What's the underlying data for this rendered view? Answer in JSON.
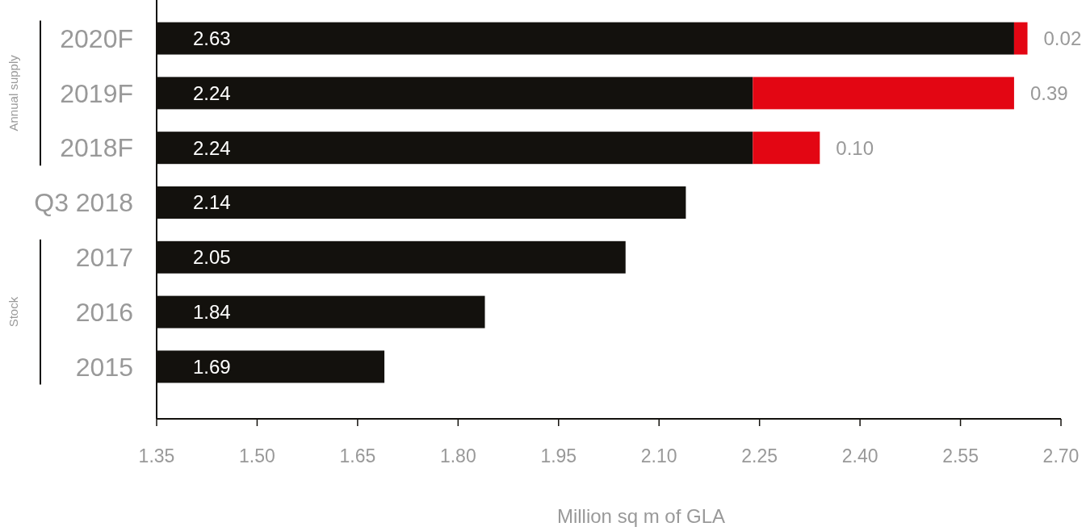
{
  "chart_data": {
    "type": "bar",
    "orientation": "horizontal",
    "xlabel": "Million sq m of GLA",
    "categories": [
      "2020F",
      "2019F",
      "2018F",
      "Q3 2018",
      "2017",
      "2016",
      "2015"
    ],
    "series": [
      {
        "color": "#13110d",
        "values": [
          2.63,
          2.24,
          2.24,
          2.14,
          2.05,
          1.84,
          1.69
        ],
        "value_labels": [
          "2.63",
          "2.24",
          "2.24",
          "2.14",
          "2.05",
          "1.84",
          "1.69"
        ]
      },
      {
        "color": "#e30613",
        "values": [
          0.02,
          0.39,
          0.1,
          null,
          null,
          null,
          null
        ],
        "base": [
          2.63,
          2.24,
          2.24,
          null,
          null,
          null,
          null
        ],
        "value_labels": [
          "0.02",
          "0.39",
          "0.10",
          null,
          null,
          null,
          null
        ]
      }
    ],
    "xlim": [
      1.35,
      2.7
    ],
    "xticks": [
      {
        "value": 1.35,
        "label": "1.35"
      },
      {
        "value": 1.5,
        "label": "1.50"
      },
      {
        "value": 1.65,
        "label": "1.65"
      },
      {
        "value": 1.8,
        "label": "1.80"
      },
      {
        "value": 1.95,
        "label": "1.95"
      },
      {
        "value": 2.1,
        "label": "2.10"
      },
      {
        "value": 2.25,
        "label": "2.25"
      },
      {
        "value": 2.4,
        "label": "2.40"
      },
      {
        "value": 2.55,
        "label": "2.55"
      },
      {
        "value": 2.7,
        "label": "2.70"
      }
    ],
    "annotations": [
      "Annual supply",
      "Stock"
    ]
  }
}
